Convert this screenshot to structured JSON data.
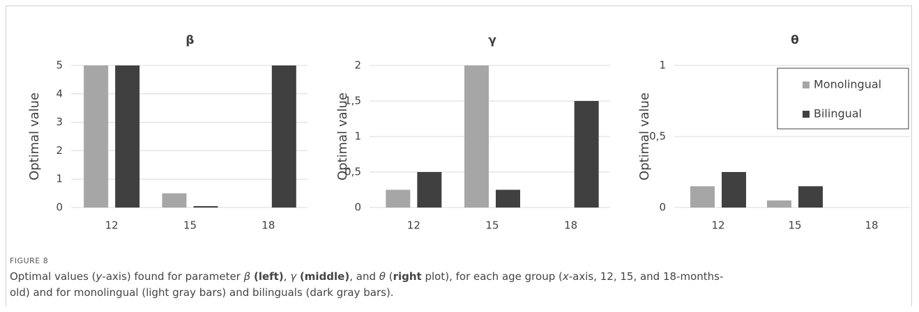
{
  "chart_data": [
    {
      "type": "bar",
      "title": "β",
      "y_label": "Optimal value",
      "categories": [
        "12",
        "15",
        "18"
      ],
      "series": [
        {
          "color": "#a6a6a6",
          "values": [
            5,
            0.5,
            0
          ]
        },
        {
          "color": "#404040",
          "values": [
            5,
            0.05,
            5
          ]
        }
      ],
      "ylim": [
        0,
        5
      ],
      "yticks": [
        0,
        1,
        2,
        3,
        4,
        5
      ],
      "grid": true,
      "legend": false
    },
    {
      "type": "bar",
      "title": "γ",
      "y_label": "Optimal value",
      "categories": [
        "12",
        "15",
        "18"
      ],
      "series": [
        {
          "color": "#a6a6a6",
          "values": [
            0.25,
            2,
            0
          ]
        },
        {
          "color": "#404040",
          "values": [
            0.5,
            0.25,
            1.5
          ]
        }
      ],
      "ylim": [
        0,
        2
      ],
      "yticks": [
        0,
        {
          "value": 0.5,
          "label": "0,5"
        },
        1,
        {
          "value": 1.5,
          "label": "1,5"
        },
        2
      ],
      "grid": true,
      "legend": false
    },
    {
      "type": "bar",
      "title": "θ",
      "y_label": "Optimal value",
      "categories": [
        "12",
        "15",
        "18"
      ],
      "series": [
        {
          "name": "Monolingual",
          "color": "#a6a6a6",
          "values": [
            0.15,
            0.05,
            0
          ]
        },
        {
          "name": "Bilingual",
          "color": "#404040",
          "values": [
            0.25,
            0.15,
            0
          ]
        }
      ],
      "ylim": [
        0,
        1
      ],
      "yticks": [
        0,
        {
          "value": 0.5,
          "label": "0,5"
        },
        1
      ],
      "grid": true,
      "legend": "upper right"
    }
  ],
  "figure": {
    "label": "FIGURE 8",
    "caption": [
      "Optimal values (",
      "y",
      "-axis) found for parameter ",
      "β",
      " ",
      "(left)",
      ", ",
      "γ",
      " ",
      "(middle)",
      ", and ",
      "θ",
      " (",
      "right",
      " plot), for each age group (",
      "x",
      "-axis, 12, 15, and 18-months-old) and for monolingual (light gray bars) and bilinguals (dark gray bars)."
    ]
  }
}
